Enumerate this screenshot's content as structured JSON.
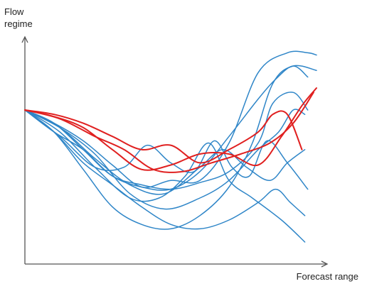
{
  "chart_data": {
    "type": "line",
    "ylabel": "Flow\nregime",
    "xlabel": "Forecast range",
    "xlim": [
      0,
      100
    ],
    "ylim": [
      0,
      100
    ],
    "grid": false,
    "legend": "none",
    "colors": {
      "ensemble": "#2f86c8",
      "highlight": "#e02020",
      "axis": "#555555"
    },
    "series": [
      {
        "group": "ensemble",
        "x": [
          0,
          10,
          20,
          30,
          40,
          50,
          60,
          70,
          80,
          90,
          97,
          100
        ],
        "y": [
          70,
          64,
          56,
          45,
          35,
          38,
          38,
          55,
          87,
          96,
          96,
          95
        ]
      },
      {
        "group": "ensemble",
        "x": [
          0,
          10,
          20,
          30,
          40,
          50,
          60,
          70,
          78,
          85,
          92,
          100
        ],
        "y": [
          70,
          60,
          43,
          26,
          18,
          16,
          22,
          35,
          55,
          82,
          90,
          88
        ]
      },
      {
        "group": "ensemble",
        "x": [
          0,
          10,
          20,
          30,
          40,
          50,
          60,
          70,
          80,
          86,
          92,
          97
        ],
        "y": [
          70,
          60,
          52,
          40,
          35,
          34,
          42,
          58,
          75,
          84,
          90,
          85
        ]
      },
      {
        "group": "ensemble",
        "x": [
          0,
          10,
          20,
          30,
          40,
          50,
          60,
          70,
          80,
          85,
          92,
          97
        ],
        "y": [
          70,
          64,
          52,
          40,
          36,
          34,
          37,
          42,
          55,
          73,
          78,
          70
        ]
      },
      {
        "group": "ensemble",
        "x": [
          0,
          12,
          24,
          34,
          42,
          50,
          58,
          65,
          71,
          77,
          83,
          90,
          97
        ],
        "y": [
          70,
          58,
          44,
          44,
          54,
          46,
          42,
          56,
          44,
          40,
          56,
          46,
          34
        ]
      },
      {
        "group": "ensemble",
        "x": [
          0,
          12,
          24,
          36,
          46,
          55,
          63,
          70,
          78,
          88,
          96
        ],
        "y": [
          70,
          60,
          44,
          30,
          30,
          40,
          55,
          38,
          30,
          20,
          10
        ]
      },
      {
        "group": "ensemble",
        "x": [
          0,
          10,
          20,
          30,
          40,
          50,
          60,
          70,
          80,
          86,
          91,
          96
        ],
        "y": [
          70,
          60,
          46,
          36,
          26,
          18,
          16,
          20,
          28,
          34,
          28,
          22
        ]
      },
      {
        "group": "ensemble",
        "x": [
          0,
          12,
          24,
          36,
          48,
          60,
          70,
          80,
          87,
          92,
          96
        ],
        "y": [
          70,
          62,
          50,
          32,
          25,
          30,
          38,
          52,
          60,
          70,
          68
        ]
      },
      {
        "group": "ensemble",
        "x": [
          0,
          12,
          24,
          36,
          48,
          60,
          68,
          76,
          84,
          90,
          96
        ],
        "y": [
          70,
          62,
          48,
          36,
          32,
          44,
          52,
          44,
          38,
          46,
          52
        ]
      },
      {
        "group": "highlight",
        "x": [
          0,
          10,
          20,
          30,
          40,
          50,
          60,
          70,
          80,
          88,
          95,
          100
        ],
        "y": [
          70,
          67,
          62,
          52,
          43,
          45,
          50,
          50,
          45,
          58,
          72,
          80
        ]
      },
      {
        "group": "highlight",
        "x": [
          0,
          10,
          20,
          30,
          40,
          50,
          60,
          70,
          80,
          85,
          90,
          95
        ],
        "y": [
          70,
          68,
          64,
          58,
          52,
          54,
          46,
          52,
          60,
          68,
          68,
          52
        ]
      },
      {
        "group": "highlight",
        "x": [
          0,
          12,
          24,
          34,
          44,
          54,
          64,
          74,
          84,
          92,
          99
        ],
        "y": [
          70,
          66,
          58,
          52,
          43,
          42,
          46,
          50,
          55,
          64,
          78
        ]
      }
    ]
  }
}
